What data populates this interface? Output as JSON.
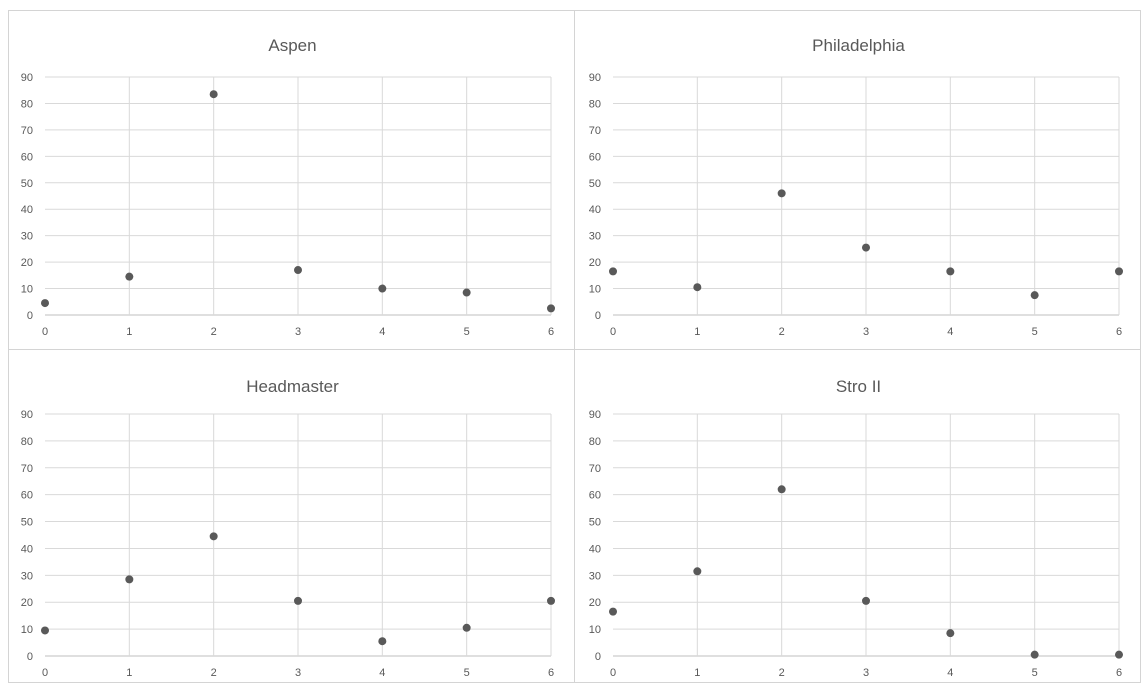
{
  "chart_data": [
    {
      "type": "scatter",
      "title": "Aspen",
      "x": [
        0,
        1,
        2,
        3,
        4,
        5,
        6
      ],
      "y": [
        4.5,
        14.5,
        83.5,
        17,
        10,
        8.5,
        2.5
      ],
      "xlim": [
        0,
        6
      ],
      "ylim": [
        0,
        90
      ],
      "xticks": [
        0,
        1,
        2,
        3,
        4,
        5,
        6
      ],
      "yticks": [
        0,
        10,
        20,
        30,
        40,
        50,
        60,
        70,
        80,
        90
      ],
      "grid": true
    },
    {
      "type": "scatter",
      "title": "Philadelphia",
      "x": [
        0,
        1,
        2,
        3,
        4,
        5,
        6
      ],
      "y": [
        16.5,
        10.5,
        46,
        25.5,
        16.5,
        7.5,
        16.5
      ],
      "xlim": [
        0,
        6
      ],
      "ylim": [
        0,
        90
      ],
      "xticks": [
        0,
        1,
        2,
        3,
        4,
        5,
        6
      ],
      "yticks": [
        0,
        10,
        20,
        30,
        40,
        50,
        60,
        70,
        80,
        90
      ],
      "grid": true
    },
    {
      "type": "scatter",
      "title": "Headmaster",
      "x": [
        0,
        1,
        2,
        3,
        4,
        5,
        6
      ],
      "y": [
        9.5,
        28.5,
        44.5,
        20.5,
        5.5,
        10.5,
        20.5
      ],
      "xlim": [
        0,
        6
      ],
      "ylim": [
        0,
        90
      ],
      "xticks": [
        0,
        1,
        2,
        3,
        4,
        5,
        6
      ],
      "yticks": [
        0,
        10,
        20,
        30,
        40,
        50,
        60,
        70,
        80,
        90
      ],
      "grid": true
    },
    {
      "type": "scatter",
      "title": "Stro II",
      "x": [
        0,
        1,
        2,
        3,
        4,
        5,
        6
      ],
      "y": [
        16.5,
        31.5,
        62,
        20.5,
        8.5,
        0.5,
        0.5
      ],
      "xlim": [
        0,
        6
      ],
      "ylim": [
        0,
        90
      ],
      "xticks": [
        0,
        1,
        2,
        3,
        4,
        5,
        6
      ],
      "yticks": [
        0,
        10,
        20,
        30,
        40,
        50,
        60,
        70,
        80,
        90
      ],
      "grid": true
    }
  ],
  "colors": {
    "point": "#595959",
    "gridline": "#d9d9d9",
    "panel_border": "#d4d4d4",
    "text": "#595959"
  }
}
